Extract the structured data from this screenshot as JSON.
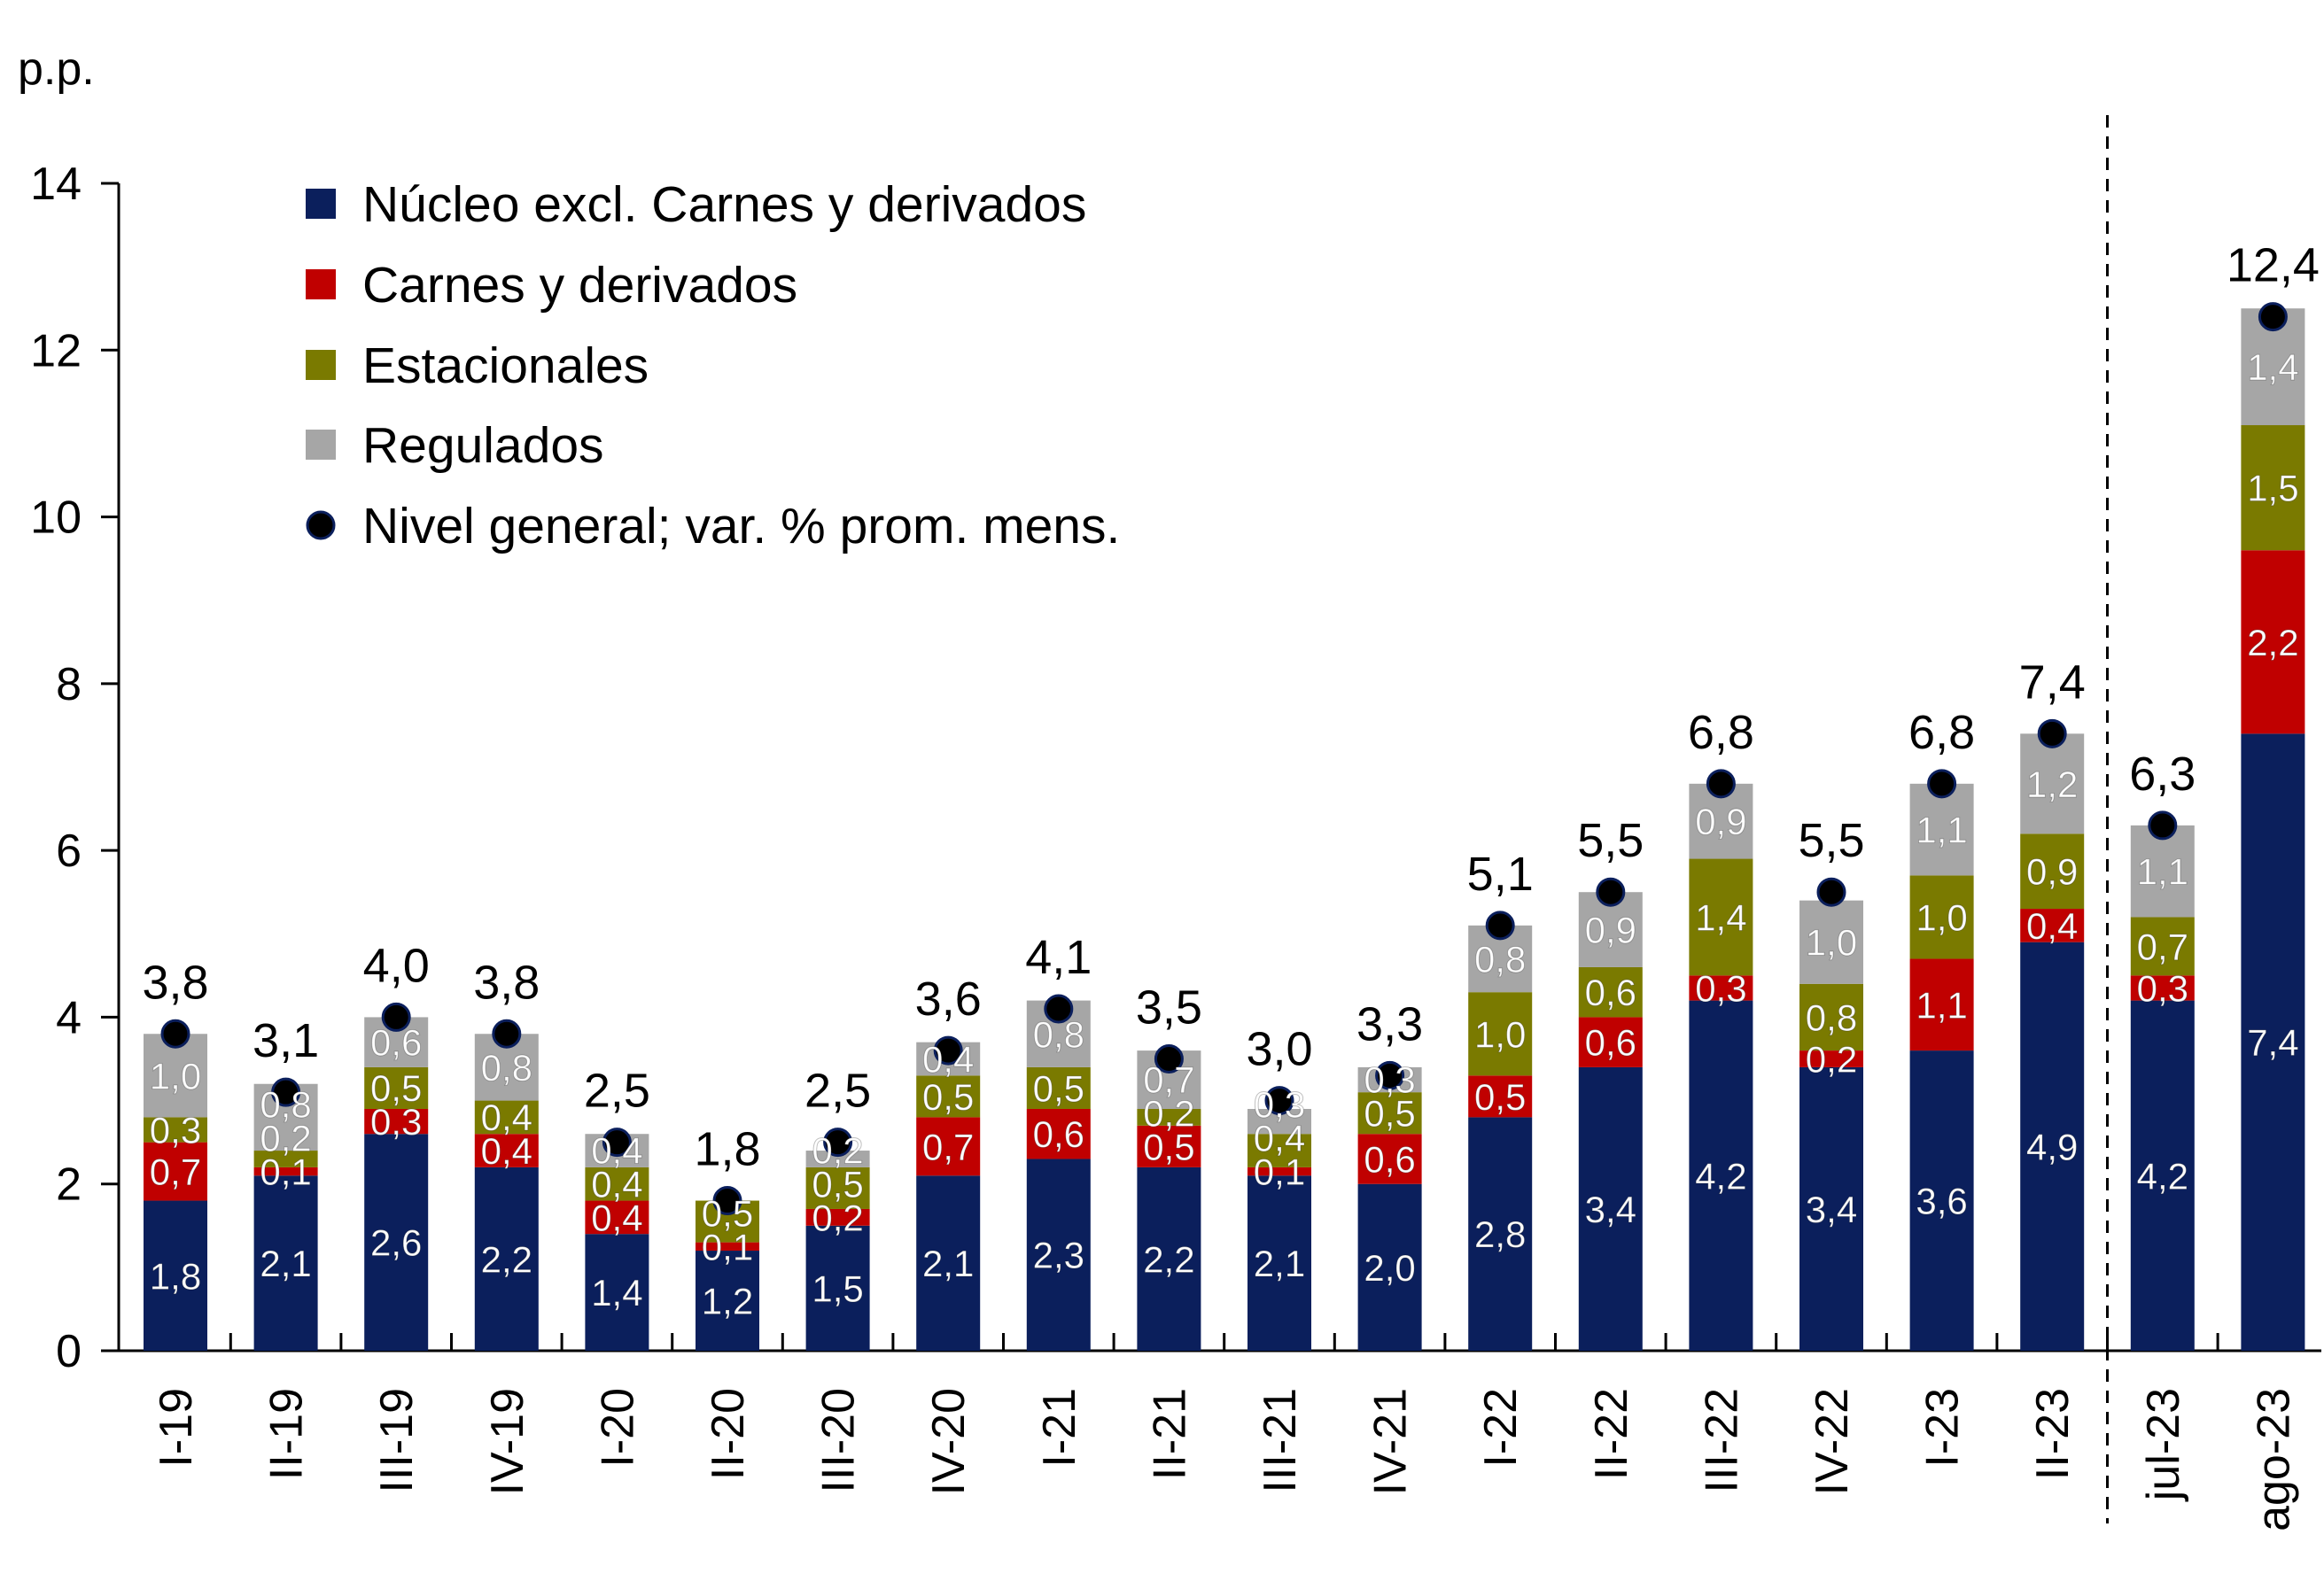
{
  "chart_data": {
    "type": "bar",
    "stacked": true,
    "ylabel": "p.p.",
    "ylim": [
      0,
      14
    ],
    "yticks": [
      0,
      2,
      4,
      6,
      8,
      10,
      12,
      14
    ],
    "grid": false,
    "legend_position": "top-left",
    "separator_after_category": "II-23",
    "categories": [
      "I-19",
      "II-19",
      "III-19",
      "IV-19",
      "I-20",
      "II-20",
      "III-20",
      "IV-20",
      "I-21",
      "II-21",
      "III-21",
      "IV-21",
      "I-22",
      "II-22",
      "III-22",
      "IV-22",
      "I-23",
      "II-23",
      "jul-23",
      "ago-23"
    ],
    "series": [
      {
        "name": "Núcleo excl. Carnes y derivados",
        "color": "#0b1f5c",
        "values": [
          1.8,
          2.1,
          2.6,
          2.2,
          1.4,
          1.2,
          1.5,
          2.1,
          2.3,
          2.2,
          2.1,
          2.0,
          2.8,
          3.4,
          4.2,
          3.4,
          3.6,
          4.9,
          4.2,
          7.4
        ]
      },
      {
        "name": "Carnes y derivados",
        "color": "#c00000",
        "values": [
          0.7,
          0.1,
          0.3,
          0.4,
          0.4,
          0.1,
          0.2,
          0.7,
          0.6,
          0.5,
          0.1,
          0.6,
          0.5,
          0.6,
          0.3,
          0.2,
          1.1,
          0.4,
          0.3,
          2.2
        ]
      },
      {
        "name": "Estacionales",
        "color": "#7a7a00",
        "values": [
          0.3,
          0.2,
          0.5,
          0.4,
          0.4,
          0.5,
          0.5,
          0.5,
          0.5,
          0.2,
          0.4,
          0.5,
          1.0,
          0.6,
          1.4,
          0.8,
          1.0,
          0.9,
          0.7,
          1.5
        ]
      },
      {
        "name": "Regulados",
        "color": "#a6a6a6",
        "values": [
          1.0,
          0.8,
          0.6,
          0.8,
          0.4,
          null,
          0.2,
          0.4,
          0.8,
          0.7,
          0.3,
          0.3,
          0.8,
          0.9,
          0.9,
          1.0,
          1.1,
          1.2,
          1.1,
          1.4
        ]
      }
    ],
    "line_series": {
      "name": "Nivel general; var. % prom. mens.",
      "color": "#000000",
      "marker": "dot",
      "values": [
        3.8,
        3.1,
        4.0,
        3.8,
        2.5,
        1.8,
        2.5,
        3.6,
        4.1,
        3.5,
        3.0,
        3.3,
        5.1,
        5.5,
        6.8,
        5.5,
        6.8,
        7.4,
        6.3,
        12.4
      ]
    }
  }
}
